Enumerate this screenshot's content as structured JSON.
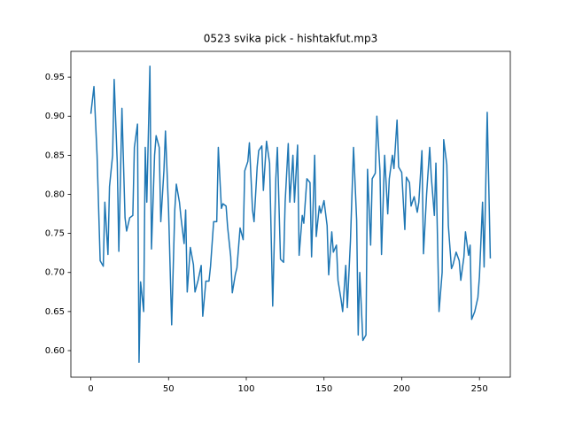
{
  "chart_data": {
    "type": "line",
    "title": "0523 svika pick - hishtakfut.mp3",
    "x": [
      0,
      2,
      4,
      6,
      8,
      9,
      11,
      12,
      14,
      15,
      17,
      18,
      20,
      22,
      23,
      25,
      27,
      28,
      30,
      31,
      32,
      34,
      35,
      36,
      38,
      39,
      41,
      42,
      44,
      45,
      47,
      48,
      50,
      52,
      54,
      55,
      57,
      58,
      60,
      61,
      62,
      64,
      66,
      67,
      69,
      71,
      72,
      74,
      76,
      77,
      79,
      81,
      82,
      84,
      85,
      87,
      88,
      90,
      91,
      93,
      94,
      96,
      98,
      99,
      101,
      102,
      104,
      105,
      107,
      108,
      110,
      111,
      113,
      115,
      117,
      119,
      120,
      122,
      124,
      125,
      127,
      128,
      130,
      131,
      133,
      134,
      136,
      137,
      139,
      141,
      142,
      144,
      145,
      147,
      148,
      150,
      152,
      153,
      155,
      156,
      158,
      159,
      161,
      162,
      164,
      165,
      167,
      169,
      171,
      172,
      173,
      175,
      177,
      178,
      180,
      181,
      183,
      184,
      186,
      187,
      189,
      191,
      192,
      194,
      195,
      197,
      198,
      200,
      202,
      203,
      205,
      206,
      208,
      210,
      211,
      213,
      214,
      216,
      218,
      219,
      221,
      222,
      224,
      226,
      227,
      229,
      230,
      232,
      233,
      235,
      237,
      238,
      240,
      241,
      243,
      244,
      245,
      247,
      249,
      250,
      252,
      253,
      255,
      257
    ],
    "series": [
      {
        "color": "#1f77b4",
        "values": [
          0.903,
          0.938,
          0.85,
          0.715,
          0.708,
          0.79,
          0.723,
          0.81,
          0.85,
          0.947,
          0.84,
          0.727,
          0.91,
          0.77,
          0.753,
          0.77,
          0.773,
          0.86,
          0.89,
          0.585,
          0.688,
          0.65,
          0.86,
          0.79,
          0.964,
          0.73,
          0.85,
          0.875,
          0.86,
          0.765,
          0.83,
          0.881,
          0.78,
          0.633,
          0.78,
          0.813,
          0.79,
          0.77,
          0.737,
          0.78,
          0.675,
          0.732,
          0.71,
          0.675,
          0.69,
          0.709,
          0.644,
          0.689,
          0.689,
          0.708,
          0.765,
          0.765,
          0.86,
          0.782,
          0.788,
          0.785,
          0.758,
          0.72,
          0.674,
          0.698,
          0.706,
          0.757,
          0.742,
          0.83,
          0.842,
          0.866,
          0.78,
          0.765,
          0.835,
          0.856,
          0.862,
          0.805,
          0.868,
          0.84,
          0.657,
          0.82,
          0.86,
          0.717,
          0.713,
          0.79,
          0.865,
          0.79,
          0.85,
          0.79,
          0.863,
          0.722,
          0.773,
          0.763,
          0.82,
          0.815,
          0.72,
          0.85,
          0.746,
          0.785,
          0.776,
          0.792,
          0.76,
          0.697,
          0.752,
          0.726,
          0.735,
          0.69,
          0.665,
          0.65,
          0.709,
          0.655,
          0.74,
          0.86,
          0.767,
          0.62,
          0.7,
          0.613,
          0.62,
          0.832,
          0.735,
          0.82,
          0.827,
          0.9,
          0.83,
          0.723,
          0.85,
          0.775,
          0.82,
          0.85,
          0.833,
          0.895,
          0.835,
          0.828,
          0.755,
          0.822,
          0.815,
          0.785,
          0.797,
          0.777,
          0.79,
          0.856,
          0.724,
          0.8,
          0.86,
          0.823,
          0.773,
          0.84,
          0.65,
          0.7,
          0.87,
          0.838,
          0.76,
          0.705,
          0.71,
          0.726,
          0.715,
          0.69,
          0.72,
          0.752,
          0.722,
          0.735,
          0.64,
          0.65,
          0.668,
          0.695,
          0.79,
          0.707,
          0.905,
          0.718
        ]
      }
    ],
    "xlim": [
      -12.85,
      269.85
    ],
    "ylim": [
      0.566,
      0.983
    ],
    "xticks": [
      0,
      50,
      100,
      150,
      200,
      250
    ],
    "yticks": [
      {
        "value": 0.6,
        "label": "0.60"
      },
      {
        "value": 0.65,
        "label": "0.65"
      },
      {
        "value": 0.7,
        "label": "0.70"
      },
      {
        "value": 0.75,
        "label": "0.75"
      },
      {
        "value": 0.8,
        "label": "0.80"
      },
      {
        "value": 0.85,
        "label": "0.85"
      },
      {
        "value": 0.9,
        "label": "0.90"
      },
      {
        "value": 0.95,
        "label": "0.95"
      }
    ],
    "grid": false
  }
}
